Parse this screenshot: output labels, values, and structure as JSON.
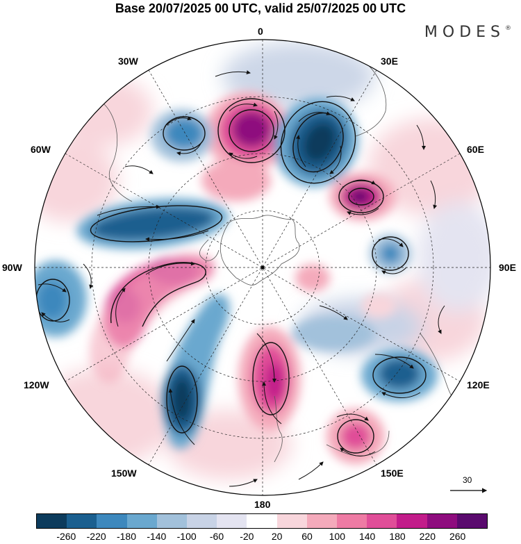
{
  "title": "Base 20/07/2025 00 UTC, valid 25/07/2025 00 UTC",
  "brand": "MODES",
  "brand_mark": "®",
  "longitude_labels": {
    "top": "0",
    "e30": "30E",
    "e60": "60E",
    "e90": "90E",
    "e120": "120E",
    "e150": "150E",
    "bottom": "180",
    "w150": "150W",
    "w120": "120W",
    "w90": "90W",
    "w60": "60W",
    "w30": "30W"
  },
  "reference_vector": {
    "label": "30"
  },
  "colorbar": {
    "colors": [
      "#0c3b5c",
      "#1a5f8f",
      "#3d88bd",
      "#6aa8cf",
      "#a2c1db",
      "#c8d3e6",
      "#e4e4f1",
      "#ffffff",
      "#f8d6dc",
      "#f4aabb",
      "#ee7ba4",
      "#e04e98",
      "#c21c8a",
      "#8e0c7e",
      "#5a0a6e"
    ],
    "tick_labels": [
      "-260",
      "-220",
      "-180",
      "-140",
      "-100",
      "-60",
      "-20",
      "20",
      "60",
      "100",
      "140",
      "180",
      "220",
      "260"
    ]
  },
  "anomaly_centers": [
    {
      "type": "positive",
      "level": 220
    },
    {
      "type": "negative",
      "level": -240
    },
    {
      "type": "negative",
      "level": -180
    },
    {
      "type": "negative",
      "level": -220
    },
    {
      "type": "positive",
      "level": 220
    },
    {
      "type": "negative",
      "level": -120
    },
    {
      "type": "positive",
      "level": 180
    },
    {
      "type": "positive",
      "level": 200
    },
    {
      "type": "negative",
      "level": -240
    },
    {
      "type": "positive",
      "level": 180
    },
    {
      "type": "negative",
      "level": -200
    },
    {
      "type": "positive",
      "level": 160
    },
    {
      "type": "negative",
      "level": -160
    }
  ]
}
